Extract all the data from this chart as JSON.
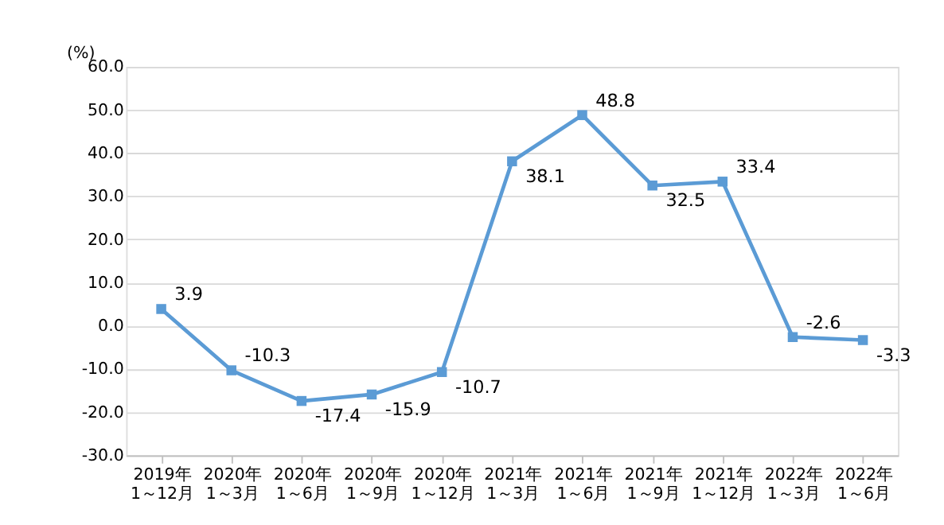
{
  "chart_data": {
    "type": "line",
    "ylabel": "(%)",
    "categories": [
      "2019年\n1～12月",
      "2020年\n1～3月",
      "2020年\n1～6月",
      "2020年\n1～9月",
      "2020年\n1～12月",
      "2021年\n1～3月",
      "2021年\n1～6月",
      "2021年\n1～9月",
      "2021年\n1～12月",
      "2022年\n1～3月",
      "2022年\n1～6月"
    ],
    "series": [
      {
        "color": "#5b9bd5",
        "values": [
          3.9,
          -10.3,
          -17.4,
          -15.9,
          -10.7,
          38.1,
          48.8,
          32.5,
          33.4,
          -2.6,
          -3.3
        ]
      }
    ],
    "ylim": [
      -30,
      60
    ],
    "yticks": [
      {
        "value": -30,
        "label": "-30.0"
      },
      {
        "value": -20,
        "label": "-20.0"
      },
      {
        "value": -10,
        "label": "-10.0"
      },
      {
        "value": 0,
        "label": "0.0"
      },
      {
        "value": 10,
        "label": "10.0"
      },
      {
        "value": 20,
        "label": "20.0"
      },
      {
        "value": 30,
        "label": "30.0"
      },
      {
        "value": 40,
        "label": "40.0"
      },
      {
        "value": 50,
        "label": "50.0"
      },
      {
        "value": 60,
        "label": "60.0"
      }
    ],
    "grid": "y",
    "marker": "square",
    "line_style": "solid",
    "data_labels": true
  }
}
